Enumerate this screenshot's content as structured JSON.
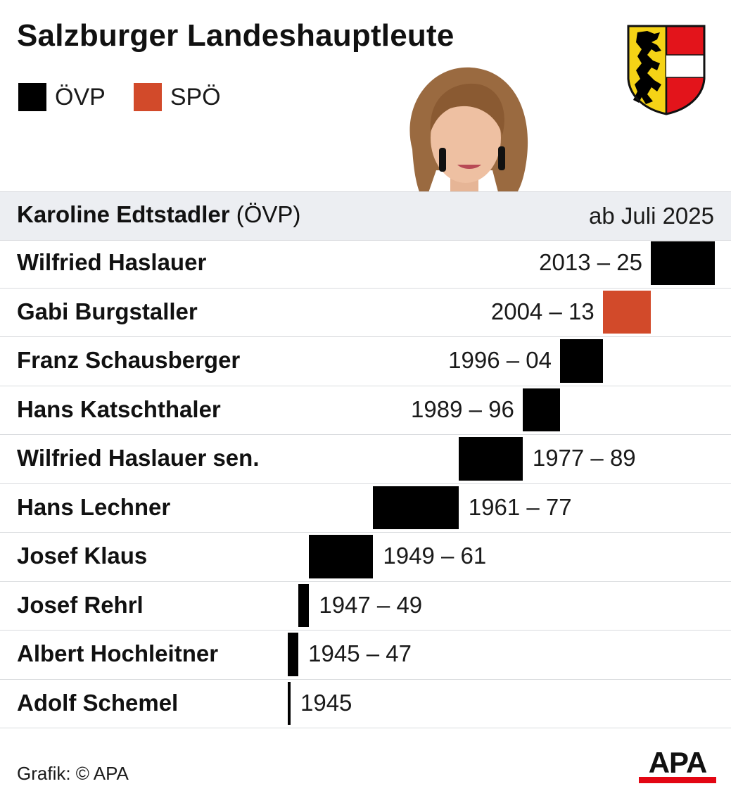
{
  "title": "Salzburger Landeshauptleute",
  "legend": [
    {
      "label": "ÖVP",
      "color": "#000000"
    },
    {
      "label": "SPÖ",
      "color": "#d24a2a"
    }
  ],
  "current": {
    "name": "Karoline Edtstadler",
    "party_label": "(ÖVP)",
    "period": "ab Juli 2025"
  },
  "chart_data": {
    "type": "bar",
    "title": "Salzburger Landeshauptleute",
    "xlim": [
      1945,
      2025
    ],
    "series": [
      {
        "name": "ÖVP",
        "color": "#000000"
      },
      {
        "name": "SPÖ",
        "color": "#d24a2a"
      }
    ],
    "governors": [
      {
        "name": "Wilfried Haslauer",
        "period": "2013 – 25",
        "start": 2013,
        "end": 2025,
        "party": "ÖVP",
        "label_side": "left"
      },
      {
        "name": "Gabi Burgstaller",
        "period": "2004 – 13",
        "start": 2004,
        "end": 2013,
        "party": "SPÖ",
        "label_side": "left"
      },
      {
        "name": "Franz Schausberger",
        "period": "1996 – 04",
        "start": 1996,
        "end": 2004,
        "party": "ÖVP",
        "label_side": "left"
      },
      {
        "name": "Hans Katschthaler",
        "period": "1989 – 96",
        "start": 1989,
        "end": 1996,
        "party": "ÖVP",
        "label_side": "left"
      },
      {
        "name": "Wilfried Haslauer sen.",
        "period": "1977 – 89",
        "start": 1977,
        "end": 1989,
        "party": "ÖVP",
        "label_side": "right"
      },
      {
        "name": "Hans Lechner",
        "period": "1961 – 77",
        "start": 1961,
        "end": 1977,
        "party": "ÖVP",
        "label_side": "right"
      },
      {
        "name": "Josef Klaus",
        "period": "1949 – 61",
        "start": 1949,
        "end": 1961,
        "party": "ÖVP",
        "label_side": "right"
      },
      {
        "name": "Josef Rehrl",
        "period": "1947 – 49",
        "start": 1947,
        "end": 1949,
        "party": "ÖVP",
        "label_side": "right"
      },
      {
        "name": "Albert Hochleitner",
        "period": "1945 – 47",
        "start": 1945,
        "end": 1947,
        "party": "ÖVP",
        "label_side": "right"
      },
      {
        "name": "Adolf Schemel",
        "period": "1945",
        "start": 1945,
        "end": 1945,
        "party": "ÖVP",
        "label_side": "right"
      }
    ]
  },
  "credit": "Grafik: © APA",
  "logo": {
    "text": "APA",
    "accent": "#e30613"
  },
  "crest": {
    "colors": {
      "gold": "#f5d316",
      "red": "#e3141b",
      "white": "#ffffff",
      "black": "#000000"
    }
  },
  "icons": {
    "crest": "salzburg-coat-of-arms-icon",
    "portrait": "person-photo-icon",
    "logo": "apa-logo-icon"
  }
}
